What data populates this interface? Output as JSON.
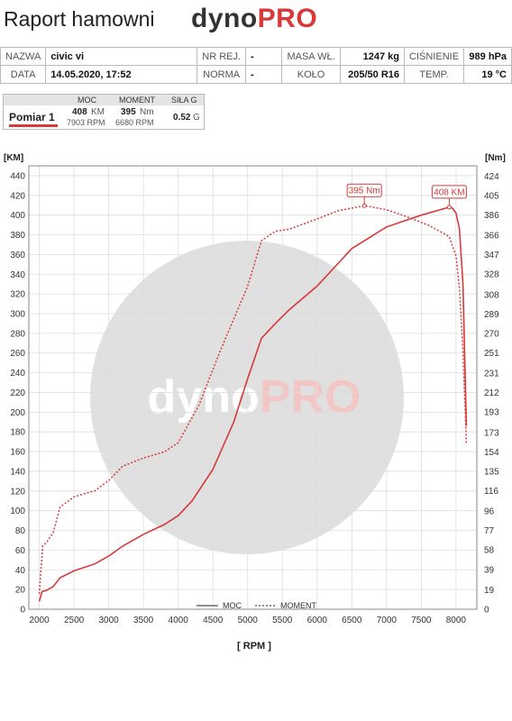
{
  "header": {
    "title": "Raport hamowni",
    "brand_a": "dyno",
    "brand_b": "PRO"
  },
  "info": {
    "row1": [
      {
        "label": "NAZWA",
        "value": "civic vi"
      },
      {
        "label": "NR REJ.",
        "value": "-"
      },
      {
        "label": "MASA WŁ.",
        "value": "1247 kg"
      },
      {
        "label": "CIŚNIENIE",
        "value": "989 hPa"
      }
    ],
    "row2": [
      {
        "label": "DATA",
        "value": "14.05.2020, 17:52"
      },
      {
        "label": "NORMA",
        "value": "-"
      },
      {
        "label": "KOŁO",
        "value": "205/50 R16"
      },
      {
        "label": "TEMP.",
        "value": "19 °C"
      }
    ]
  },
  "measurement": {
    "col_power": "MOC",
    "col_torque": "MOMENT",
    "col_g": "SIŁA G",
    "name": "Pomiar 1",
    "power_value": "408",
    "power_unit": "KM",
    "power_rpm": "7903 RPM",
    "torque_value": "395",
    "torque_unit": "Nm",
    "torque_rpm": "6680 RPM",
    "g_value": "0.52",
    "g_unit": "G"
  },
  "watermark": {
    "a": "dyno",
    "b": "PRO"
  },
  "colors": {
    "accent": "#d63a3a",
    "grid": "#dddddd",
    "watermark": "#e0e0e0"
  },
  "chart_data": {
    "type": "line",
    "xlabel": "[ RPM ]",
    "ylabel_left": "[KM]",
    "ylabel_right": "[Nm]",
    "xlim": [
      1850,
      8300
    ],
    "ylim_left": [
      0,
      450
    ],
    "ylim_right": [
      0,
      434
    ],
    "x_ticks": [
      2000,
      2500,
      3000,
      3500,
      4000,
      4500,
      5000,
      5500,
      6000,
      6500,
      7000,
      7500,
      8000
    ],
    "y_ticks_left": [
      0,
      20,
      40,
      60,
      80,
      100,
      120,
      140,
      160,
      180,
      200,
      220,
      240,
      260,
      280,
      300,
      320,
      340,
      360,
      380,
      400,
      420,
      440
    ],
    "y_ticks_right": [
      0,
      19,
      39,
      58,
      77,
      96,
      116,
      135,
      154,
      173,
      193,
      212,
      231,
      251,
      270,
      289,
      308,
      328,
      347,
      366,
      386,
      405,
      424
    ],
    "grid": true,
    "legend": "bottom",
    "series": [
      {
        "name": "MOC",
        "axis": "left",
        "style": "solid",
        "x": [
          2000,
          2040,
          2100,
          2200,
          2300,
          2500,
          2800,
          3000,
          3200,
          3500,
          3800,
          4000,
          4200,
          4500,
          4800,
          5000,
          5200,
          5400,
          5600,
          6000,
          6500,
          7000,
          7500,
          7800,
          7903,
          7950,
          8000,
          8050,
          8100,
          8150
        ],
        "y": [
          8,
          18,
          19,
          23,
          32,
          39,
          46,
          54,
          64,
          76,
          86,
          95,
          110,
          142,
          190,
          234,
          275,
          290,
          304,
          328,
          366,
          388,
          400,
          406,
          408,
          407,
          402,
          386,
          330,
          186
        ]
      },
      {
        "name": "MOMENT",
        "axis": "right",
        "style": "dotted",
        "x": [
          2000,
          2020,
          2050,
          2100,
          2200,
          2300,
          2500,
          2800,
          3000,
          3200,
          3500,
          3800,
          4000,
          4300,
          4600,
          5000,
          5200,
          5400,
          5600,
          6000,
          6300,
          6680,
          7000,
          7300,
          7600,
          7900,
          8000,
          8050,
          8100,
          8150
        ],
        "y": [
          15,
          35,
          62,
          65,
          75,
          100,
          110,
          116,
          126,
          140,
          148,
          154,
          163,
          200,
          252,
          316,
          361,
          370,
          372,
          382,
          390,
          395,
          391,
          384,
          376,
          365,
          346,
          314,
          253,
          162
        ]
      }
    ],
    "annotations": [
      {
        "text": "395 Nm",
        "x": 6680,
        "y": 395,
        "axis": "right"
      },
      {
        "text": "408 KM",
        "x": 7903,
        "y": 408,
        "axis": "left"
      }
    ]
  }
}
